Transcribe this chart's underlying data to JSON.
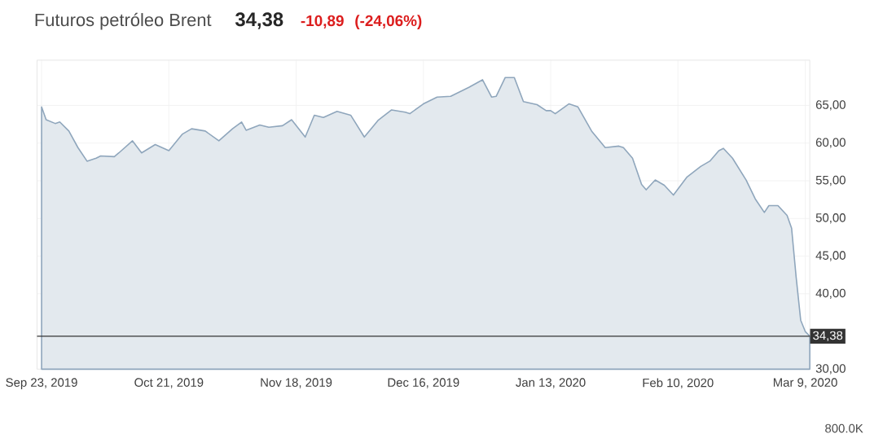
{
  "chart_data": {
    "type": "area",
    "title": "Futuros petróleo Brent",
    "annotations": [
      "34,38",
      "-10,89",
      "(-24,06%)",
      "800.0K"
    ],
    "x": [
      "2019-09-23",
      "2019-09-24",
      "2019-09-26",
      "2019-09-27",
      "2019-09-29",
      "2019-10-01",
      "2019-10-03",
      "2019-10-05",
      "2019-10-06",
      "2019-10-09",
      "2019-10-10",
      "2019-10-13",
      "2019-10-15",
      "2019-10-18",
      "2019-10-21",
      "2019-10-24",
      "2019-10-26",
      "2019-10-29",
      "2019-11-01",
      "2019-11-04",
      "2019-11-06",
      "2019-11-07",
      "2019-11-10",
      "2019-11-12",
      "2019-11-15",
      "2019-11-17",
      "2019-11-20",
      "2019-11-22",
      "2019-11-24",
      "2019-11-27",
      "2019-11-30",
      "2019-12-03",
      "2019-12-06",
      "2019-12-09",
      "2019-12-12",
      "2019-12-13",
      "2019-12-16",
      "2019-12-19",
      "2019-12-22",
      "2019-12-26",
      "2019-12-29",
      "2019-12-31",
      "2020-01-01",
      "2020-01-03",
      "2020-01-05",
      "2020-01-07",
      "2020-01-10",
      "2020-01-12",
      "2020-01-13",
      "2020-01-14",
      "2020-01-17",
      "2020-01-19",
      "2020-01-22",
      "2020-01-25",
      "2020-01-28",
      "2020-01-29",
      "2020-01-31",
      "2020-02-02",
      "2020-02-03",
      "2020-02-05",
      "2020-02-07",
      "2020-02-09",
      "2020-02-12",
      "2020-02-15",
      "2020-02-17",
      "2020-02-19",
      "2020-02-20",
      "2020-02-22",
      "2020-02-25",
      "2020-02-27",
      "2020-02-29",
      "2020-03-01",
      "2020-03-03",
      "2020-03-05",
      "2020-03-06",
      "2020-03-07",
      "2020-03-08",
      "2020-03-09",
      "2020-03-10"
    ],
    "series": [
      {
        "color": "#8fa6bc",
        "values": [
          64.8,
          63.1,
          62.6,
          62.8,
          61.6,
          59.4,
          57.6,
          58.0,
          58.3,
          58.2,
          58.7,
          60.3,
          58.7,
          59.8,
          59.0,
          61.2,
          61.9,
          61.6,
          60.3,
          61.9,
          62.8,
          61.7,
          62.4,
          62.1,
          62.3,
          63.1,
          60.8,
          63.7,
          63.4,
          64.2,
          63.7,
          60.8,
          63.0,
          64.4,
          64.1,
          63.9,
          65.2,
          66.1,
          66.2,
          67.4,
          68.4,
          66.1,
          66.2,
          68.7,
          68.7,
          65.5,
          65.1,
          64.3,
          64.3,
          63.9,
          65.2,
          64.8,
          61.6,
          59.4,
          59.6,
          59.4,
          58.0,
          54.5,
          53.8,
          55.1,
          54.4,
          53.1,
          55.5,
          56.9,
          57.6,
          59.0,
          59.3,
          58.0,
          55.1,
          52.6,
          50.8,
          51.7,
          51.7,
          50.4,
          48.7,
          42.2,
          36.5,
          35.0,
          34.38
        ]
      }
    ],
    "xlim": [
      "2019-09-22",
      "2020-03-10"
    ],
    "xticks": [
      {
        "value": "2019-09-23",
        "label": "Sep 23, 2019"
      },
      {
        "value": "2019-10-21",
        "label": "Oct 21, 2019"
      },
      {
        "value": "2019-11-18",
        "label": "Nov 18, 2019"
      },
      {
        "value": "2019-12-16",
        "label": "Dec 16, 2019"
      },
      {
        "value": "2020-01-13",
        "label": "Jan 13, 2020"
      },
      {
        "value": "2020-02-10",
        "label": "Feb 10, 2020"
      },
      {
        "value": "2020-03-09",
        "label": "Mar 9, 2020"
      }
    ],
    "ylim": [
      30,
      71
    ],
    "yticks": [
      {
        "value": 30,
        "label": "30,00"
      },
      {
        "value": 40,
        "label": "40,00"
      },
      {
        "value": 45,
        "label": "45,00"
      },
      {
        "value": 50,
        "label": "50,00"
      },
      {
        "value": 55,
        "label": "55,00"
      },
      {
        "value": 60,
        "label": "60,00"
      },
      {
        "value": 65,
        "label": "65,00"
      }
    ],
    "ref_lines": [
      {
        "axis": "y",
        "value": 34.38,
        "label": "34,38",
        "color": "#333333"
      }
    ],
    "grid": true
  }
}
